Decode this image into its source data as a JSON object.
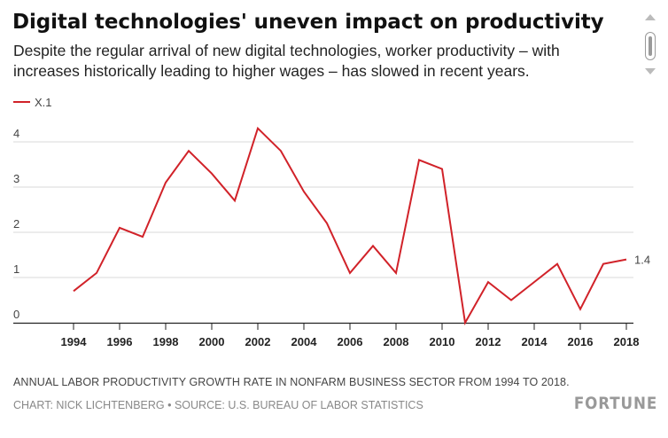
{
  "header": {
    "title": "Digital technologies' uneven impact on productivity",
    "subtitle": "Despite the regular arrival of new digital technologies, worker productivity – with increases historically leading to higher wages – has slowed in recent years."
  },
  "footer": {
    "note": "ANNUAL LABOR PRODUCTIVITY GROWTH RATE IN NONFARM BUSINESS SECTOR FROM 1994 TO 2018.",
    "credit": "CHART: NICK LICHTENBERG • SOURCE: U.S. BUREAU OF LABOR STATISTICS",
    "logo": "FORTUNE"
  },
  "colors": {
    "series": "#d12229",
    "grid": "#d9d9d9",
    "axis": "#222222"
  },
  "chart_data": {
    "type": "line",
    "title": "Digital technologies' uneven impact on productivity",
    "xlabel": "",
    "ylabel": "",
    "x": [
      1994,
      1995,
      1996,
      1997,
      1998,
      1999,
      2000,
      2001,
      2002,
      2003,
      2004,
      2005,
      2006,
      2007,
      2008,
      2009,
      2010,
      2011,
      2012,
      2013,
      2014,
      2015,
      2016,
      2017,
      2018
    ],
    "series": [
      {
        "name": "X.1",
        "values": [
          0.7,
          1.1,
          2.1,
          1.9,
          3.1,
          3.8,
          3.3,
          2.7,
          4.3,
          3.8,
          2.9,
          2.2,
          1.1,
          1.7,
          1.1,
          3.6,
          3.4,
          0.0,
          0.9,
          0.5,
          0.9,
          1.3,
          0.3,
          1.3,
          1.4
        ]
      }
    ],
    "x_ticks": [
      "1994",
      "1996",
      "1998",
      "2000",
      "2002",
      "2004",
      "2006",
      "2008",
      "2010",
      "2012",
      "2014",
      "2016",
      "2018"
    ],
    "y_ticks": [
      "0",
      "1",
      "2",
      "3",
      "4"
    ],
    "end_label": "1.4",
    "ylim": [
      0,
      4.4
    ],
    "xlim": [
      1993,
      2019
    ],
    "grid": true,
    "legend": "top-left"
  }
}
